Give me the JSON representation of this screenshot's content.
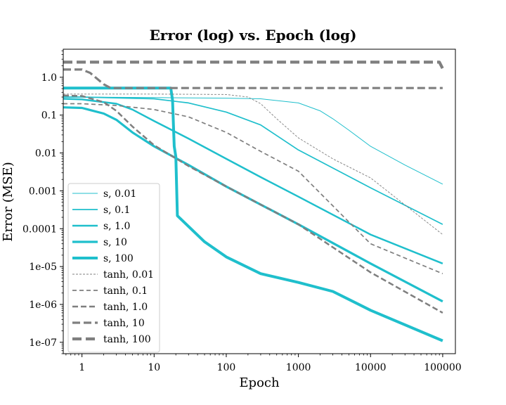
{
  "chart_data": {
    "type": "line",
    "title": "Error (log) vs. Epoch (log)",
    "xlabel": "Epoch",
    "ylabel": "Error (MSE)",
    "xscale": "log",
    "yscale": "log",
    "xlim": [
      0.55,
      150000
    ],
    "ylim": [
      5e-08,
      5.5
    ],
    "xticks": [
      1,
      10,
      100,
      1000,
      10000,
      100000
    ],
    "xtick_labels": [
      "1",
      "10",
      "100",
      "1000",
      "10000",
      "100000"
    ],
    "yticks": [
      1e-07,
      1e-06,
      1e-05,
      0.0001,
      0.001,
      0.01,
      0.1,
      1.0
    ],
    "ytick_labels": [
      "1e-07",
      "1e-06",
      "1e-05",
      "0.0001",
      "0.001",
      "0.01",
      "0.1",
      "1.0"
    ],
    "grid": false,
    "legend_position": "bottom-left",
    "colors": {
      "s": "#1fbfcc",
      "tanh": "#7f7f7f"
    },
    "series": [
      {
        "name": "s, 0.01",
        "family": "s",
        "lw": 1,
        "dash": "",
        "points": [
          [
            0.55,
            0.3
          ],
          [
            1,
            0.3
          ],
          [
            10,
            0.29
          ],
          [
            100,
            0.28
          ],
          [
            300,
            0.27
          ],
          [
            1000,
            0.21
          ],
          [
            2000,
            0.13
          ],
          [
            3000,
            0.08
          ],
          [
            5000,
            0.04
          ],
          [
            10000,
            0.015
          ],
          [
            30000,
            0.0048
          ],
          [
            100000,
            0.0015
          ]
        ]
      },
      {
        "name": "s, 0.1",
        "family": "s",
        "lw": 1.7,
        "dash": "",
        "points": [
          [
            0.55,
            0.3
          ],
          [
            1,
            0.3
          ],
          [
            10,
            0.27
          ],
          [
            30,
            0.21
          ],
          [
            100,
            0.12
          ],
          [
            300,
            0.055
          ],
          [
            1000,
            0.012
          ],
          [
            10000,
            0.0012
          ],
          [
            100000,
            0.00013
          ]
        ]
      },
      {
        "name": "s, 1.0",
        "family": "s",
        "lw": 2.5,
        "dash": "",
        "points": [
          [
            0.55,
            0.27
          ],
          [
            1,
            0.26
          ],
          [
            3,
            0.2
          ],
          [
            5,
            0.14
          ],
          [
            10,
            0.07
          ],
          [
            30,
            0.024
          ],
          [
            100,
            0.007
          ],
          [
            300,
            0.0023
          ],
          [
            1000,
            0.0007
          ],
          [
            10000,
            7e-05
          ],
          [
            100000,
            1.2e-05
          ]
        ]
      },
      {
        "name": "s, 10",
        "family": "s",
        "lw": 3.2,
        "dash": "",
        "points": [
          [
            0.55,
            0.16
          ],
          [
            1,
            0.155
          ],
          [
            2,
            0.11
          ],
          [
            3,
            0.075
          ],
          [
            5,
            0.035
          ],
          [
            10,
            0.015
          ],
          [
            30,
            0.0048
          ],
          [
            100,
            0.0013
          ],
          [
            1000,
            0.00013
          ],
          [
            10000,
            1.2e-05
          ],
          [
            100000,
            1.2e-06
          ]
        ]
      },
      {
        "name": "s, 100",
        "family": "s",
        "lw": 4,
        "dash": "",
        "points": [
          [
            0.55,
            0.52
          ],
          [
            1,
            0.52
          ],
          [
            10,
            0.52
          ],
          [
            17,
            0.52
          ],
          [
            18,
            0.25
          ],
          [
            19,
            0.015
          ],
          [
            20,
            0.008
          ],
          [
            21,
            0.00022
          ],
          [
            50,
            4.5e-05
          ],
          [
            100,
            1.8e-05
          ],
          [
            300,
            6.5e-06
          ],
          [
            1000,
            3.8e-06
          ],
          [
            3000,
            2.2e-06
          ],
          [
            10000,
            7e-07
          ],
          [
            100000,
            1.1e-07
          ]
        ]
      },
      {
        "name": "tanh, 0.01",
        "family": "tanh",
        "lw": 0.9,
        "dash": "3,2",
        "points": [
          [
            0.55,
            0.36
          ],
          [
            1,
            0.36
          ],
          [
            10,
            0.36
          ],
          [
            100,
            0.35
          ],
          [
            200,
            0.3
          ],
          [
            300,
            0.2
          ],
          [
            500,
            0.08
          ],
          [
            1000,
            0.025
          ],
          [
            3000,
            0.007
          ],
          [
            10000,
            0.0022
          ],
          [
            100000,
            7e-05
          ]
        ]
      },
      {
        "name": "tanh, 0.1",
        "family": "tanh",
        "lw": 1.7,
        "dash": "6,4",
        "points": [
          [
            0.55,
            0.2
          ],
          [
            1,
            0.2
          ],
          [
            3,
            0.18
          ],
          [
            10,
            0.14
          ],
          [
            30,
            0.09
          ],
          [
            100,
            0.035
          ],
          [
            300,
            0.011
          ],
          [
            1000,
            0.0033
          ],
          [
            10000,
            4e-05
          ],
          [
            100000,
            6.5e-06
          ]
        ]
      },
      {
        "name": "tanh, 1.0",
        "family": "tanh",
        "lw": 2.5,
        "dash": "8,4",
        "points": [
          [
            0.55,
            0.33
          ],
          [
            1,
            0.32
          ],
          [
            2,
            0.22
          ],
          [
            3,
            0.13
          ],
          [
            5,
            0.05
          ],
          [
            10,
            0.016
          ],
          [
            30,
            0.0045
          ],
          [
            100,
            0.0013
          ],
          [
            1000,
            0.00013
          ],
          [
            10000,
            7e-06
          ],
          [
            100000,
            6e-07
          ]
        ]
      },
      {
        "name": "tanh, 10",
        "family": "tanh",
        "lw": 3.2,
        "dash": "11,5",
        "points": [
          [
            0.55,
            1.6
          ],
          [
            1,
            1.6
          ],
          [
            1.3,
            1.3
          ],
          [
            2,
            0.65
          ],
          [
            2.5,
            0.52
          ],
          [
            10,
            0.52
          ],
          [
            100,
            0.52
          ],
          [
            1000,
            0.52
          ],
          [
            100000,
            0.52
          ]
        ]
      },
      {
        "name": "tanh, 100",
        "family": "tanh",
        "lw": 4.2,
        "dash": "13,6",
        "points": [
          [
            0.55,
            2.5
          ],
          [
            1,
            2.5
          ],
          [
            100,
            2.5
          ],
          [
            10000,
            2.5
          ],
          [
            90000,
            2.5
          ],
          [
            100000,
            1.7
          ]
        ]
      }
    ]
  }
}
